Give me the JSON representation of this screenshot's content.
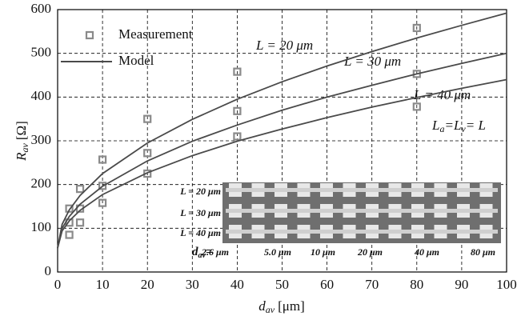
{
  "chart_data": {
    "type": "scatter-line",
    "x_label": {
      "symbol": "d",
      "subscript": "av",
      "unit": "[μm]"
    },
    "y_label": {
      "symbol": "R",
      "subscript": "av",
      "unit": "[Ω]"
    },
    "xlim": [
      0,
      100
    ],
    "xticks": [
      0,
      10,
      20,
      30,
      40,
      50,
      60,
      70,
      80,
      90,
      100
    ],
    "ylim": [
      0,
      600
    ],
    "yticks": [
      0,
      100,
      200,
      300,
      400,
      500,
      600
    ],
    "grid": true,
    "legend": "top-left",
    "series": [
      {
        "name": "Measurement",
        "kind": "markers",
        "color": "#8a8a8a",
        "x": [
          2.6,
          5,
          10,
          20,
          40,
          80,
          2.6,
          5,
          10,
          20,
          40,
          80,
          2.6,
          5,
          10,
          20,
          40,
          80
        ],
        "values": [
          145,
          190,
          257,
          350,
          458,
          558,
          113,
          145,
          197,
          272,
          368,
          453,
          85,
          113,
          158,
          225,
          310,
          378
        ]
      },
      {
        "name": "Model",
        "kind": "line",
        "color": "#4a4a4a",
        "x": [
          0,
          1,
          2.6,
          5,
          10,
          20,
          30,
          40,
          50,
          60,
          70,
          80,
          90,
          100
        ],
        "values": [
          55,
          109,
          142,
          175,
          225,
          295,
          349,
          395,
          435,
          471,
          504,
          535,
          564,
          592
        ]
      },
      {
        "kind": "line",
        "color": "#4a4a4a",
        "x": [
          0,
          1,
          2.6,
          5,
          10,
          20,
          30,
          40,
          50,
          60,
          70,
          80,
          90,
          100
        ],
        "values": [
          55,
          100,
          127,
          155,
          196,
          254,
          299,
          336,
          370,
          400,
          427,
          453,
          477,
          500
        ]
      },
      {
        "kind": "line",
        "color": "#4a4a4a",
        "x": [
          0,
          1,
          2.6,
          5,
          10,
          20,
          30,
          40,
          50,
          60,
          70,
          80,
          90,
          100
        ],
        "values": [
          55,
          94,
          117,
          141,
          177,
          227,
          266,
          299,
          327,
          353,
          377,
          399,
          420,
          440
        ]
      }
    ],
    "annotations": [
      "L = 20 μm",
      "L = 30 μm",
      "L = 40 μm"
    ],
    "condition": [
      "L",
      "a",
      "=",
      "L",
      "v",
      "= L"
    ],
    "inset": {
      "row_labels": [
        "L = 20 μm",
        "L = 30 μm",
        "L = 40 μm"
      ],
      "column_symbol": "d",
      "column_subscript": "av",
      "column_equals": "=",
      "column_labels": [
        "2.6 μm",
        "5.0 μm",
        "10 μm",
        "20 μm",
        "40 μm",
        "80 μm"
      ]
    }
  }
}
